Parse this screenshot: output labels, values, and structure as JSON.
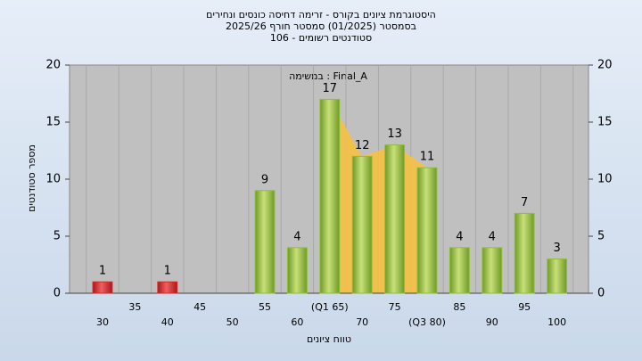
{
  "chart_data": {
    "type": "bar",
    "title": [
      "היסטוגרמת ציונים בקורס - זרימה דחיסה כונסים ונחירים",
      "בסמסטר (01/2025) סמסטר חורף 2025/26",
      "סטודנטים רשומים - 106"
    ],
    "annotation": "במשימה : Final_A",
    "x_label": "טווח ציונים",
    "y_label": "מספר סטודנטים",
    "categories": [
      "30",
      "35",
      "40",
      "45",
      "50",
      "55",
      "60",
      "(Q1 65)",
      "70",
      "75",
      "(Q3 80)",
      "85",
      "90",
      "95",
      "100"
    ],
    "values": [
      1,
      0,
      1,
      0,
      0,
      9,
      4,
      17,
      12,
      13,
      11,
      4,
      4,
      7,
      3
    ],
    "colors": [
      "#d42a2a",
      "#d42a2a",
      "#d42a2a",
      "#d42a2a",
      "#d42a2a",
      "#8fbf3a",
      "#8fbf3a",
      "#8fbf3a",
      "#8fbf3a",
      "#8fbf3a",
      "#8fbf3a",
      "#8fbf3a",
      "#8fbf3a",
      "#8fbf3a",
      "#8fbf3a"
    ],
    "ylim": [
      0,
      20
    ],
    "yticks": [
      0,
      5,
      10,
      15,
      20
    ],
    "grid": true
  }
}
